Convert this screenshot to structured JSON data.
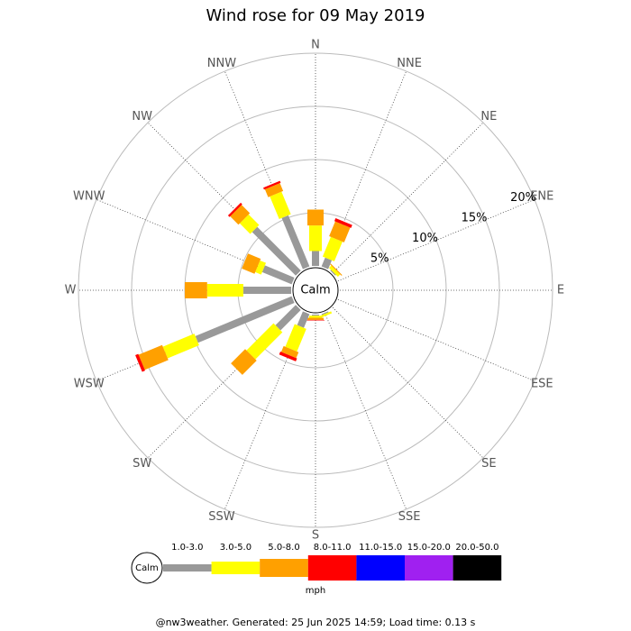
{
  "chart_data": {
    "type": "windrose",
    "title": "Wind rose for 09 May 2019",
    "categories": [
      "N",
      "NNE",
      "NE",
      "ENE",
      "E",
      "ESE",
      "SE",
      "SSE",
      "S",
      "SSW",
      "SW",
      "WSW",
      "W",
      "WNW",
      "NW",
      "NNW"
    ],
    "calm_label": "Calm",
    "rlim": [
      0,
      20
    ],
    "rticks": [
      {
        "value": 5,
        "label": "5%"
      },
      {
        "value": 10,
        "label": "10%"
      },
      {
        "value": 15,
        "label": "15%"
      },
      {
        "value": 20,
        "label": "20%"
      }
    ],
    "series": [
      {
        "name": "1.0-3.0",
        "color": "#999999",
        "values": [
          1.4,
          0.9,
          0.1,
          0,
          0,
          0,
          0,
          0.1,
          0.1,
          1.4,
          2.7,
          9.8,
          4.5,
          3.0,
          5.8,
          5.2
        ]
      },
      {
        "name": "3.0-5.0",
        "color": "#ffff00",
        "values": [
          2.4,
          2.0,
          0.3,
          0,
          0,
          0,
          0,
          0.2,
          0.2,
          2.3,
          3.6,
          3.2,
          3.4,
          0.6,
          1.4,
          2.3
        ]
      },
      {
        "name": "5.0-8.0",
        "color": "#ffa000",
        "values": [
          1.5,
          1.5,
          0.1,
          0,
          0,
          0,
          0,
          0,
          0.2,
          0.6,
          1.9,
          2.4,
          2.1,
          1.3,
          1.1,
          0.8
        ]
      },
      {
        "name": "8.0-11.0",
        "color": "#ff0000",
        "values": [
          0,
          0.3,
          0,
          0,
          0,
          0,
          0,
          0,
          0.05,
          0.3,
          0,
          0.3,
          0,
          0,
          0.2,
          0.2
        ]
      },
      {
        "name": "11.0-15.0",
        "color": "#0000ff",
        "values": [
          0,
          0,
          0,
          0,
          0,
          0,
          0,
          0,
          0,
          0,
          0,
          0,
          0,
          0,
          0,
          0
        ]
      },
      {
        "name": "15.0-20.0",
        "color": "#a020f0",
        "values": [
          0,
          0,
          0,
          0,
          0,
          0,
          0,
          0,
          0,
          0,
          0,
          0,
          0,
          0,
          0,
          0
        ]
      },
      {
        "name": "20.0-50.0",
        "color": "#000000",
        "values": [
          0,
          0,
          0,
          0,
          0,
          0,
          0,
          0,
          0,
          0,
          0,
          0,
          0,
          0,
          0,
          0
        ]
      }
    ],
    "units": "mph",
    "footer": "@nw3weather. Generated: 25 Jun 2025 14:59; Load time: 0.13 s"
  }
}
